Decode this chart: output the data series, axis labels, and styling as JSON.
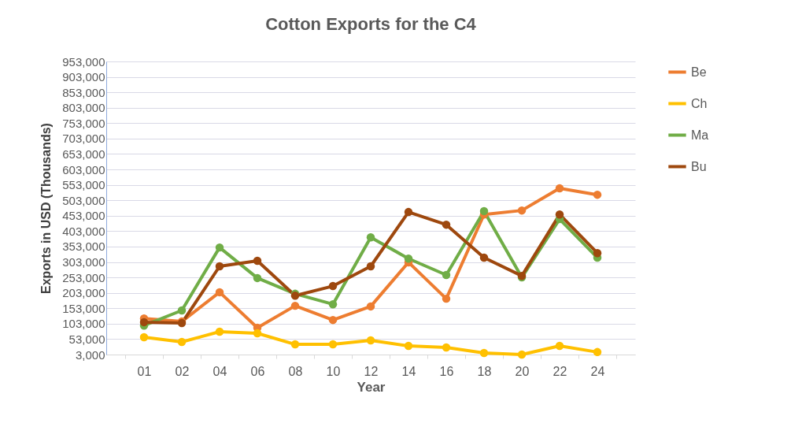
{
  "chart_data": {
    "type": "line",
    "title": "Cotton Exports for the C4",
    "xlabel": "Year",
    "ylabel": "Exports in USD (Thousands)",
    "categories": [
      "01",
      "02",
      "04",
      "06",
      "08",
      "10",
      "12",
      "14",
      "16",
      "18",
      "20",
      "22",
      "24"
    ],
    "series": [
      {
        "name": "Be",
        "color": "#ed7d31",
        "values": [
          120000,
          110000,
          205000,
          90000,
          161000,
          115000,
          159000,
          302000,
          184000,
          457000,
          470000,
          542000,
          521000
        ]
      },
      {
        "name": "Ch",
        "color": "#ffc000",
        "values": [
          59000,
          44000,
          77000,
          72000,
          36000,
          36000,
          49000,
          31000,
          26000,
          8000,
          3000,
          31000,
          11000
        ]
      },
      {
        "name": "Ma",
        "color": "#70ad47",
        "values": [
          97000,
          146000,
          350000,
          251000,
          200000,
          166000,
          383000,
          314000,
          261000,
          468000,
          253000,
          442000,
          317000
        ]
      },
      {
        "name": "Bu",
        "color": "#9e480e",
        "values": [
          108000,
          105000,
          289000,
          307000,
          194000,
          225000,
          289000,
          465000,
          424000,
          317000,
          258000,
          457000,
          332000
        ]
      }
    ],
    "ylim": [
      3000,
      953000
    ],
    "yticks": [
      {
        "value": 3000,
        "label": "3,000"
      },
      {
        "value": 53000,
        "label": "53,000"
      },
      {
        "value": 103000,
        "label": "103,000"
      },
      {
        "value": 153000,
        "label": "153,000"
      },
      {
        "value": 203000,
        "label": "203,000"
      },
      {
        "value": 253000,
        "label": "253,000"
      },
      {
        "value": 303000,
        "label": "303,000"
      },
      {
        "value": 353000,
        "label": "353,000"
      },
      {
        "value": 403000,
        "label": "403,000"
      },
      {
        "value": 453000,
        "label": "453,000"
      },
      {
        "value": 503000,
        "label": "503,000"
      },
      {
        "value": 553000,
        "label": "553,000"
      },
      {
        "value": 603000,
        "label": "603,000"
      },
      {
        "value": 653000,
        "label": "653,000"
      },
      {
        "value": 703000,
        "label": "703,000"
      },
      {
        "value": 753000,
        "label": "753,000"
      },
      {
        "value": 803000,
        "label": "803,000"
      },
      {
        "value": 853000,
        "label": "853,000"
      },
      {
        "value": 903000,
        "label": "903,000"
      },
      {
        "value": 953000,
        "label": "953,000"
      }
    ],
    "grid": "y",
    "legend": "right",
    "marker": "circle",
    "line_style": "solid"
  }
}
